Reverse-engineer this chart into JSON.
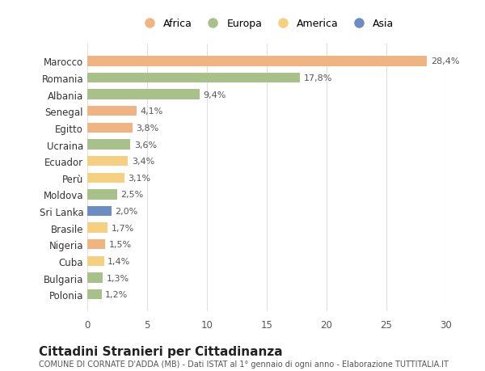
{
  "categories": [
    "Marocco",
    "Romania",
    "Albania",
    "Senegal",
    "Egitto",
    "Ucraina",
    "Ecuador",
    "Perù",
    "Moldova",
    "Sri Lanka",
    "Brasile",
    "Nigeria",
    "Cuba",
    "Bulgaria",
    "Polonia"
  ],
  "values": [
    28.4,
    17.8,
    9.4,
    4.1,
    3.8,
    3.6,
    3.4,
    3.1,
    2.5,
    2.0,
    1.7,
    1.5,
    1.4,
    1.3,
    1.2
  ],
  "labels": [
    "28,4%",
    "17,8%",
    "9,4%",
    "4,1%",
    "3,8%",
    "3,6%",
    "3,4%",
    "3,1%",
    "2,5%",
    "2,0%",
    "1,7%",
    "1,5%",
    "1,4%",
    "1,3%",
    "1,2%"
  ],
  "colors": [
    "#F0B482",
    "#A8C08A",
    "#A8C08A",
    "#F0B482",
    "#F0B482",
    "#A8C08A",
    "#F5D080",
    "#F5D080",
    "#A8C08A",
    "#6B8DC4",
    "#F5D080",
    "#F0B482",
    "#F5D080",
    "#A8C08A",
    "#A8C08A"
  ],
  "legend": [
    {
      "label": "Africa",
      "color": "#F0B482"
    },
    {
      "label": "Europa",
      "color": "#A8C08A"
    },
    {
      "label": "America",
      "color": "#F5D080"
    },
    {
      "label": "Asia",
      "color": "#6B8DC4"
    }
  ],
  "title": "Cittadini Stranieri per Cittadinanza",
  "subtitle": "COMUNE DI CORNATE D'ADDA (MB) - Dati ISTAT al 1° gennaio di ogni anno - Elaborazione TUTTITALIA.IT",
  "xlim": [
    0,
    30
  ],
  "xticks": [
    0,
    5,
    10,
    15,
    20,
    25,
    30
  ],
  "background_color": "#ffffff",
  "grid_color": "#e0e0e0",
  "bar_height": 0.6
}
